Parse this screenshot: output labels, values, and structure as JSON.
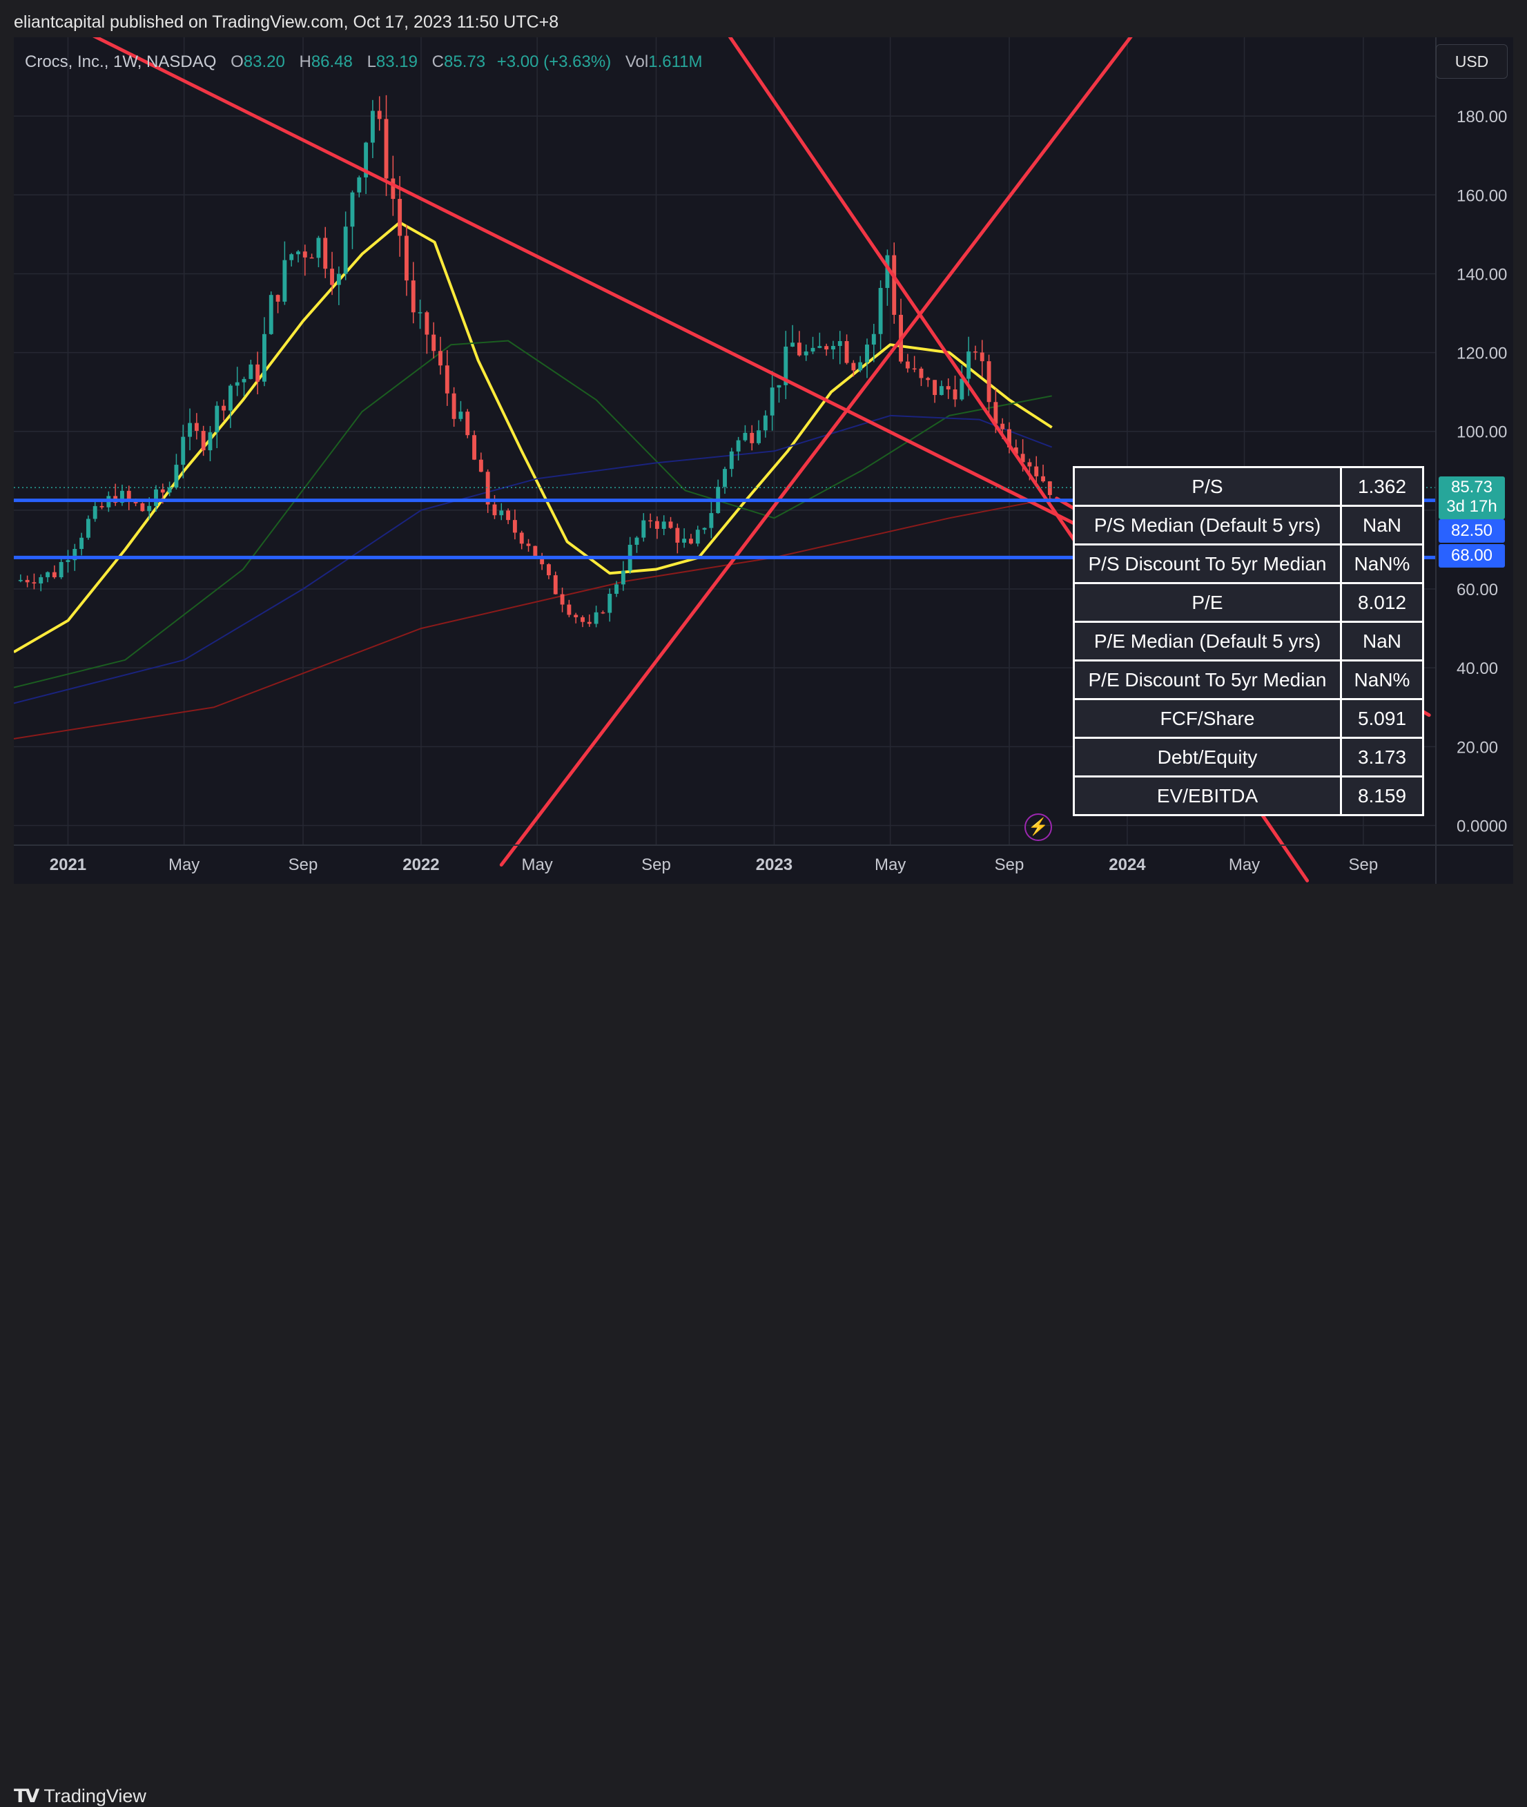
{
  "header": {
    "publisher": "eliantcapital published on TradingView.com, Oct 17, 2023 11:50 UTC+8"
  },
  "legend": {
    "symbol": "Crocs, Inc., 1W, NASDAQ",
    "open_label": "O",
    "open": "83.20",
    "high_label": "H",
    "high": "86.48",
    "low_label": "L",
    "low": "83.19",
    "close_label": "C",
    "close": "85.73",
    "change": "+3.00 (+3.63%)",
    "vol_label": "Vol",
    "vol": "1.611M"
  },
  "currency_button": "USD",
  "price_tags": {
    "last": "85.73",
    "countdown": "3d 17h",
    "level1": "82.50",
    "level2": "68.00"
  },
  "footer": {
    "brand": "TradingView"
  },
  "icons": {
    "logo": "tradingview-logo-icon",
    "bolt": "lightning-bolt-icon"
  },
  "colors": {
    "up": "#26a69a",
    "down": "#ef5350",
    "trendline": "#f23645",
    "hline": "#2962ff",
    "ma_yellow": "#ffeb3b",
    "ma_green": "#1b5e20",
    "ma_blue": "#1a237e",
    "ma_red": "#8b1a1a"
  },
  "fundamentals": [
    {
      "label": "P/S",
      "value": "1.362"
    },
    {
      "label": "P/S Median (Default 5 yrs)",
      "value": "NaN"
    },
    {
      "label": "P/S Discount To 5yr Median",
      "value": "NaN%"
    },
    {
      "label": "P/E",
      "value": "8.012"
    },
    {
      "label": "P/E Median (Default 5 yrs)",
      "value": "NaN"
    },
    {
      "label": "P/E Discount To 5yr Median",
      "value": "NaN%"
    },
    {
      "label": "FCF/Share",
      "value": "5.091"
    },
    {
      "label": "Debt/Equity",
      "value": "3.173"
    },
    {
      "label": "EV/EBITDA",
      "value": "8.159"
    }
  ],
  "chart_data": {
    "type": "candlestick",
    "interval": "1W",
    "x_range": [
      "2020-11-06",
      "2024-11-15"
    ],
    "ylim": [
      -5,
      200
    ],
    "y_ticks": [
      "0.0000",
      "20.00",
      "40.00",
      "60.00",
      "80.00",
      "100.00",
      "120.00",
      "140.00",
      "160.00",
      "180.00"
    ],
    "x_ticks": [
      {
        "date": "2021-01-01",
        "label": "2021"
      },
      {
        "date": "2021-05-01",
        "label": "May"
      },
      {
        "date": "2021-09-01",
        "label": "Sep"
      },
      {
        "date": "2022-01-01",
        "label": "2022"
      },
      {
        "date": "2022-05-01",
        "label": "May"
      },
      {
        "date": "2022-09-01",
        "label": "Sep"
      },
      {
        "date": "2023-01-01",
        "label": "2023"
      },
      {
        "date": "2023-05-01",
        "label": "May"
      },
      {
        "date": "2023-09-01",
        "label": "Sep"
      },
      {
        "date": "2024-01-01",
        "label": "2024"
      },
      {
        "date": "2024-05-01",
        "label": "May"
      },
      {
        "date": "2024-09-01",
        "label": "Sep"
      }
    ],
    "close_path": [
      [
        "2020-11-06",
        62
      ],
      [
        "2020-12-18",
        64
      ],
      [
        "2021-01-22",
        77
      ],
      [
        "2021-02-19",
        84
      ],
      [
        "2021-03-19",
        80
      ],
      [
        "2021-04-16",
        86
      ],
      [
        "2021-04-30",
        100
      ],
      [
        "2021-05-21",
        98
      ],
      [
        "2021-06-18",
        112
      ],
      [
        "2021-07-16",
        115
      ],
      [
        "2021-07-30",
        132
      ],
      [
        "2021-08-20",
        145
      ],
      [
        "2021-09-17",
        148
      ],
      [
        "2021-10-08",
        138
      ],
      [
        "2021-10-22",
        162
      ],
      [
        "2021-11-12",
        182
      ],
      [
        "2021-11-26",
        168
      ],
      [
        "2021-12-10",
        150
      ],
      [
        "2021-12-24",
        128
      ],
      [
        "2022-01-07",
        125
      ],
      [
        "2022-01-28",
        110
      ],
      [
        "2022-02-18",
        98
      ],
      [
        "2022-03-11",
        82
      ],
      [
        "2022-04-01",
        76
      ],
      [
        "2022-04-22",
        72
      ],
      [
        "2022-05-13",
        62
      ],
      [
        "2022-06-03",
        55
      ],
      [
        "2022-06-24",
        50
      ],
      [
        "2022-07-15",
        58
      ],
      [
        "2022-08-05",
        70
      ],
      [
        "2022-08-26",
        78
      ],
      [
        "2022-09-16",
        75
      ],
      [
        "2022-10-07",
        70
      ],
      [
        "2022-10-28",
        80
      ],
      [
        "2022-11-18",
        96
      ],
      [
        "2022-12-09",
        100
      ],
      [
        "2022-12-30",
        110
      ],
      [
        "2023-01-20",
        122
      ],
      [
        "2023-02-10",
        118
      ],
      [
        "2023-03-03",
        125
      ],
      [
        "2023-03-24",
        118
      ],
      [
        "2023-04-14",
        125
      ],
      [
        "2023-04-28",
        145
      ],
      [
        "2023-05-12",
        118
      ],
      [
        "2023-06-02",
        112
      ],
      [
        "2023-06-23",
        110
      ],
      [
        "2023-07-14",
        112
      ],
      [
        "2023-07-28",
        122
      ],
      [
        "2023-08-11",
        108
      ],
      [
        "2023-08-25",
        100
      ],
      [
        "2023-09-15",
        95
      ],
      [
        "2023-09-29",
        90
      ],
      [
        "2023-10-13",
        85.73
      ]
    ],
    "moving_averages": [
      {
        "color": "#ffeb3b",
        "points": [
          [
            "2020-11-06",
            44
          ],
          [
            "2021-01-01",
            52
          ],
          [
            "2021-03-01",
            70
          ],
          [
            "2021-05-01",
            90
          ],
          [
            "2021-07-01",
            108
          ],
          [
            "2021-09-01",
            128
          ],
          [
            "2021-11-01",
            145
          ],
          [
            "2021-12-10",
            153
          ],
          [
            "2022-01-15",
            148
          ],
          [
            "2022-03-01",
            118
          ],
          [
            "2022-04-15",
            95
          ],
          [
            "2022-06-01",
            72
          ],
          [
            "2022-07-15",
            64
          ],
          [
            "2022-09-01",
            65
          ],
          [
            "2022-10-15",
            68
          ],
          [
            "2022-12-01",
            82
          ],
          [
            "2023-01-15",
            95
          ],
          [
            "2023-03-01",
            110
          ],
          [
            "2023-05-01",
            122
          ],
          [
            "2023-07-01",
            120
          ],
          [
            "2023-09-01",
            108
          ],
          [
            "2023-10-15",
            101
          ]
        ]
      },
      {
        "color": "#1b5e20",
        "points": [
          [
            "2020-11-06",
            35
          ],
          [
            "2021-03-01",
            42
          ],
          [
            "2021-07-01",
            65
          ],
          [
            "2021-11-01",
            105
          ],
          [
            "2022-02-01",
            122
          ],
          [
            "2022-04-01",
            123
          ],
          [
            "2022-07-01",
            108
          ],
          [
            "2022-10-01",
            85
          ],
          [
            "2023-01-01",
            78
          ],
          [
            "2023-04-01",
            90
          ],
          [
            "2023-07-01",
            104
          ],
          [
            "2023-10-15",
            109
          ]
        ]
      },
      {
        "color": "#1a237e",
        "points": [
          [
            "2020-11-06",
            31
          ],
          [
            "2021-05-01",
            42
          ],
          [
            "2021-09-01",
            60
          ],
          [
            "2022-01-01",
            80
          ],
          [
            "2022-05-01",
            88
          ],
          [
            "2022-09-01",
            92
          ],
          [
            "2023-01-01",
            95
          ],
          [
            "2023-05-01",
            104
          ],
          [
            "2023-08-01",
            103
          ],
          [
            "2023-10-15",
            96
          ]
        ]
      },
      {
        "color": "#8b1a1a",
        "points": [
          [
            "2020-11-06",
            22
          ],
          [
            "2021-06-01",
            30
          ],
          [
            "2022-01-01",
            50
          ],
          [
            "2022-08-01",
            62
          ],
          [
            "2023-01-01",
            68
          ],
          [
            "2023-07-01",
            78
          ],
          [
            "2023-10-15",
            83
          ]
        ]
      }
    ],
    "trendlines": [
      {
        "points": [
          [
            "2020-12-04",
            207
          ],
          [
            "2023-12-15",
            72
          ]
        ]
      },
      {
        "points": [
          [
            "2022-03-25",
            -10
          ],
          [
            "2024-01-26",
            207
          ]
        ]
      },
      {
        "points": [
          [
            "2022-10-28",
            207
          ],
          [
            "2024-07-05",
            -14
          ]
        ]
      },
      {
        "points": [
          [
            "2023-10-20",
            83
          ],
          [
            "2024-11-08",
            28
          ]
        ]
      }
    ],
    "horizontal_levels": [
      82.5,
      68.0
    ],
    "last_price": 85.73
  }
}
